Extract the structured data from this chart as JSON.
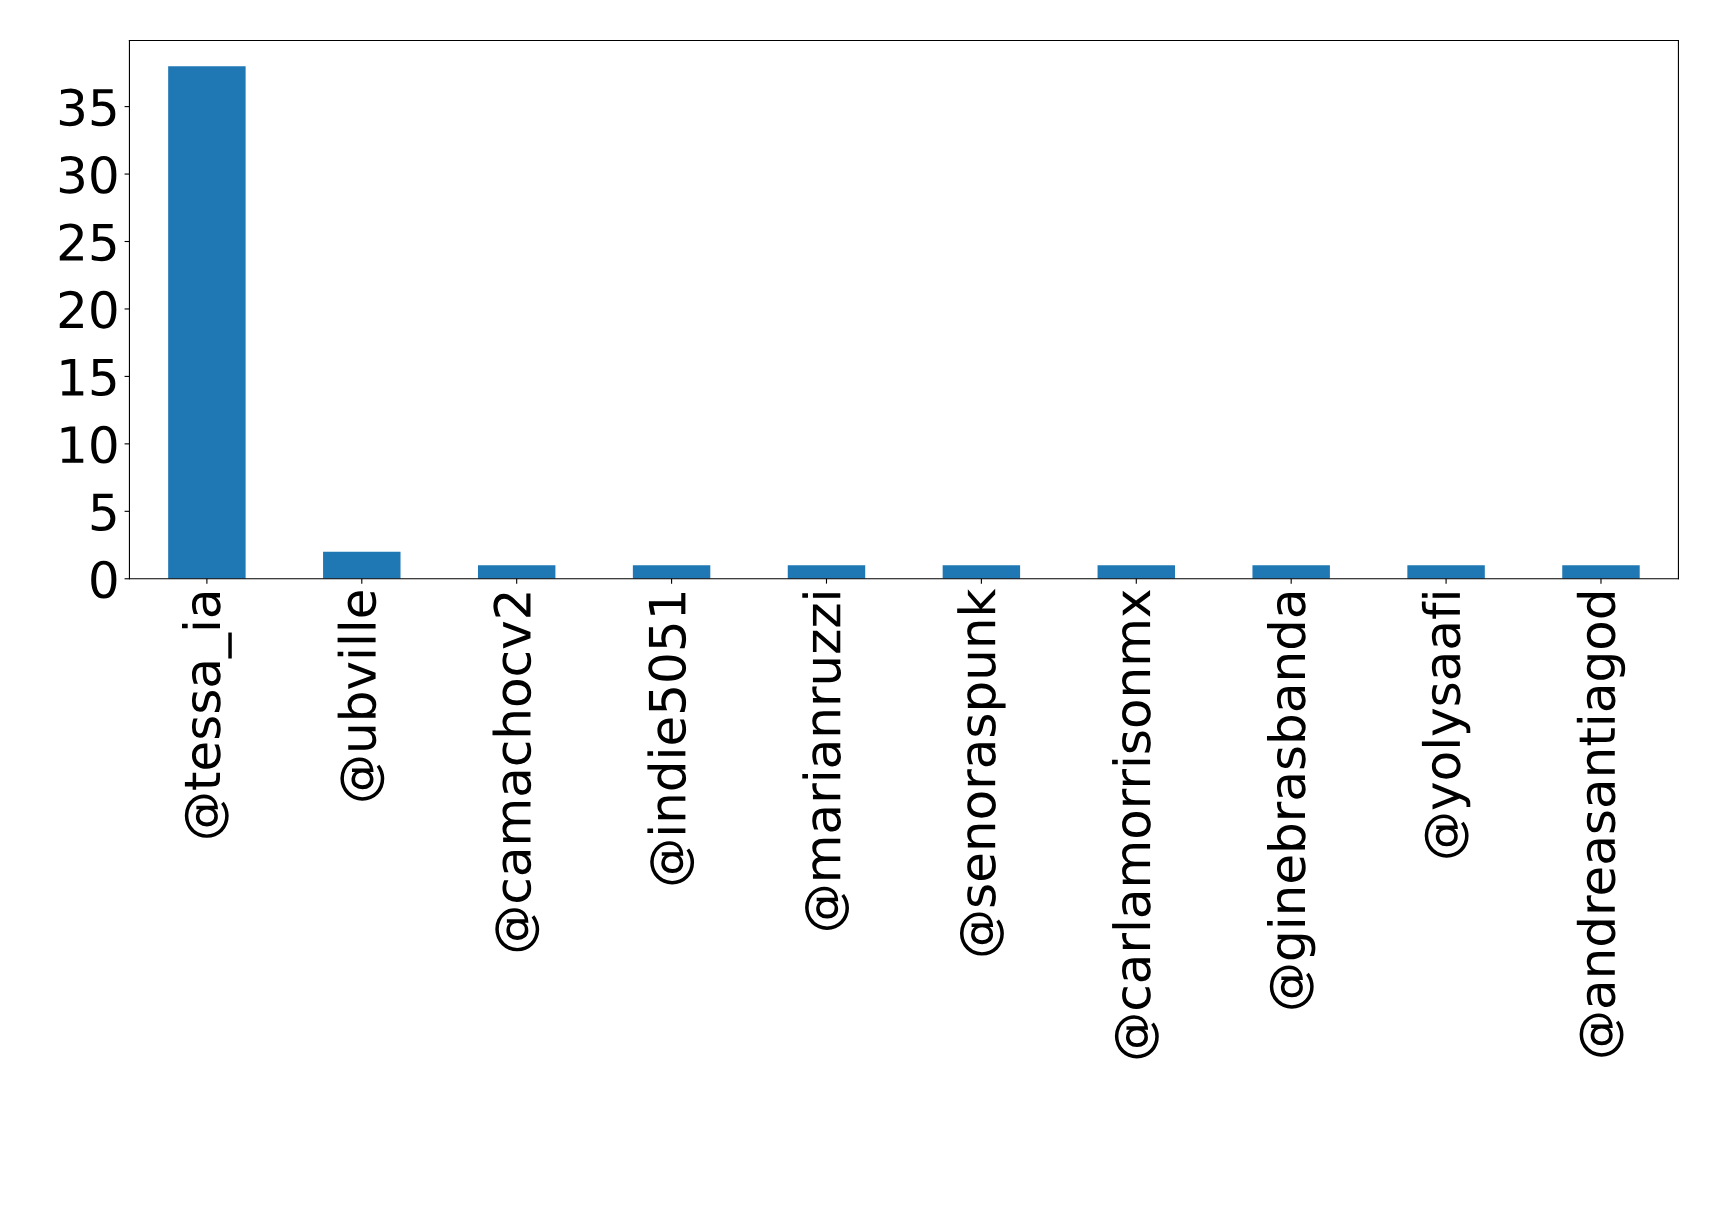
{
  "chart_data": {
    "type": "bar",
    "categories": [
      "@tessa_ia",
      "@ubville",
      "@camachocv2",
      "@indie5051",
      "@marianruzzi",
      "@senoraspunk",
      "@carlamorrisonmx",
      "@ginebrasbanda",
      "@yolysaafi",
      "@andreasantiagod"
    ],
    "values": [
      38,
      2,
      1,
      1,
      1,
      1,
      1,
      1,
      1,
      1
    ],
    "color": "#1f77b4",
    "ylim": [
      0,
      39.9
    ],
    "yticks": [
      0,
      5,
      10,
      15,
      20,
      25,
      30,
      35
    ],
    "grid": false,
    "legend": false
  }
}
